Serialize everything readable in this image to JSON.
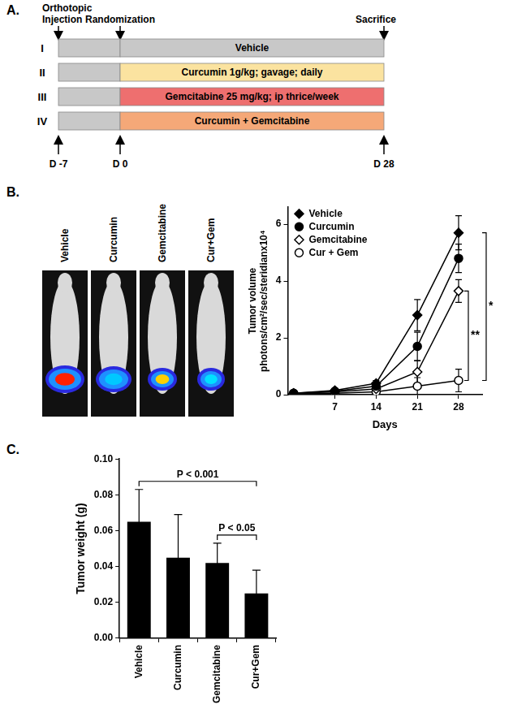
{
  "panel_labels": [
    "A.",
    "B.",
    "C."
  ],
  "panel_a": {
    "events": [
      "Orthotopic Injection",
      "Randomization",
      "Sacrifice"
    ],
    "arms": [
      {
        "id": "I",
        "text": "Vehicle",
        "color": "#c8c8c8"
      },
      {
        "id": "II",
        "text": "Curcumin 1g/kg; gavage; daily",
        "color": "#fbe3a0"
      },
      {
        "id": "III",
        "text": "Gemcitabine 25 mg/kg; ip thrice/week",
        "color": "#ee6f6f"
      },
      {
        "id": "IV",
        "text": "Curcumin + Gemcitabine",
        "color": "#f5a878"
      }
    ],
    "days": [
      "D -7",
      "D 0",
      "D 28"
    ]
  },
  "panel_b_images": [
    "Vehicle",
    "Curcumin",
    "Gemcitabine",
    "Cur+Gem"
  ],
  "chart_data": [
    {
      "type": "line",
      "xlabel": "Days",
      "ylabel": "Tumor volume",
      "yunits": "photons/cm²/sec/steridianx10⁴",
      "x": [
        0,
        7,
        14,
        21,
        28
      ],
      "xlim": [
        -1,
        32
      ],
      "xticks": [
        7,
        14,
        21,
        28
      ],
      "ylim": [
        0,
        6.6
      ],
      "yticks": [
        0,
        2,
        4,
        6
      ],
      "grid": false,
      "legend": "upper left",
      "series": [
        {
          "name": "Vehicle",
          "color": "#000000",
          "marker": "diamond",
          "values": [
            0.05,
            0.15,
            0.4,
            2.8,
            5.7
          ],
          "errors": [
            0,
            0.05,
            0.1,
            0.55,
            0.6
          ]
        },
        {
          "name": "Curcumin",
          "color": "#000000",
          "marker": "circle",
          "values": [
            0.05,
            0.12,
            0.3,
            1.7,
            4.8
          ],
          "errors": [
            0,
            0.05,
            0.1,
            0.5,
            0.5
          ]
        },
        {
          "name": "Gemcitabine",
          "color": "#000000",
          "marker": "open-diamond",
          "values": [
            0.05,
            0.1,
            0.2,
            0.8,
            3.65
          ],
          "errors": [
            0,
            0,
            0.05,
            0.4,
            0.4
          ]
        },
        {
          "name": "Cur + Gem",
          "color": "#000000",
          "marker": "open-circle",
          "values": [
            0.05,
            0.05,
            0.1,
            0.3,
            0.5
          ],
          "errors": [
            0,
            0,
            0.05,
            0.3,
            0.4
          ]
        }
      ],
      "annotations": [
        {
          "text": "*",
          "from": "Vehicle",
          "to": "Cur + Gem"
        },
        {
          "text": "**",
          "from": "Gemcitabine",
          "to": "Cur + Gem"
        }
      ]
    },
    {
      "type": "bar",
      "ylabel": "Tumor weight (g)",
      "categories": [
        "Vehicle",
        "Curcumin",
        "Gemcitabine",
        "Cur+Gem"
      ],
      "values": [
        0.065,
        0.045,
        0.042,
        0.025
      ],
      "errors": [
        0.018,
        0.024,
        0.011,
        0.013
      ],
      "color": "#000000",
      "ylim": [
        0,
        0.1
      ],
      "yticks": [
        {
          "value": 0,
          "label": "0.00"
        },
        0.02,
        0.04,
        0.06,
        0.08,
        {
          "value": 0.1,
          "label": "0.10"
        }
      ],
      "grid": false,
      "annotations": [
        {
          "text": "P < 0.001",
          "from": "Vehicle",
          "to": "Cur+Gem"
        },
        {
          "text": "P < 0.05",
          "from": "Gemcitabine",
          "to": "Cur+Gem"
        }
      ]
    }
  ]
}
